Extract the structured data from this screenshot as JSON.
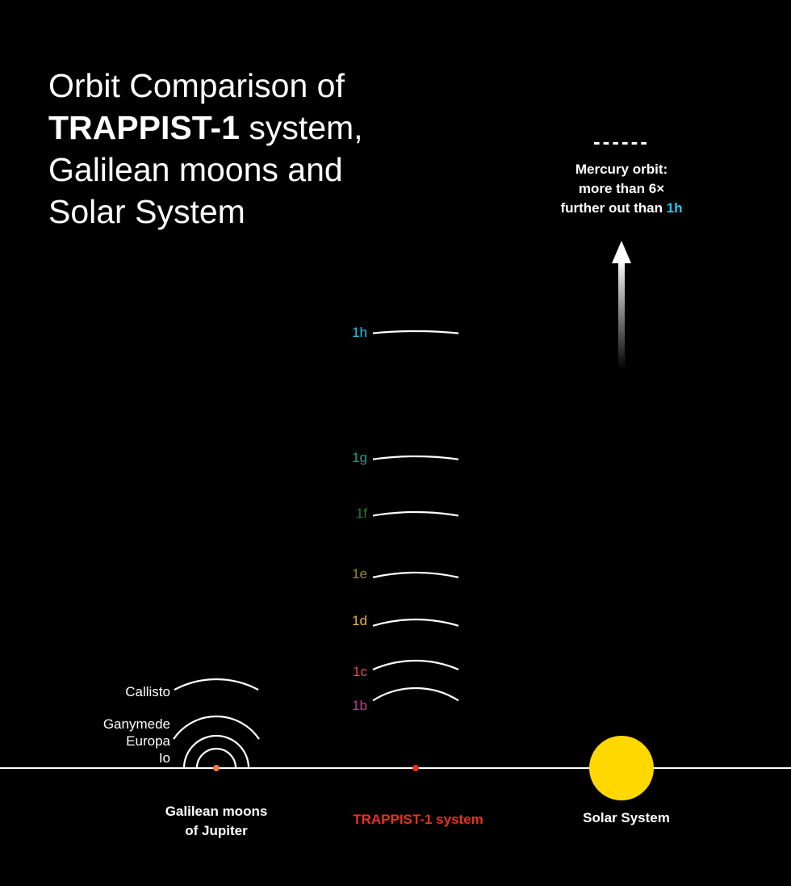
{
  "title": {
    "line1": "Orbit Comparison of",
    "bold": "TRAPPIST-1",
    "line2_rest": " system,",
    "line3": "Galilean moons and",
    "line4": "Solar System"
  },
  "mercury_note": {
    "dashes": "------",
    "line1": "Mercury orbit:",
    "line2": "more than 6×",
    "line3": "further out than ",
    "highlight": "1h",
    "highlight_color": "#1ec8f0"
  },
  "trappist_planets": [
    {
      "label": "1h",
      "color": "#1ec8f0"
    },
    {
      "label": "1g",
      "color": "#17a08a"
    },
    {
      "label": "1f",
      "color": "#1b7a3c"
    },
    {
      "label": "1e",
      "color": "#9c8a2c"
    },
    {
      "label": "1d",
      "color": "#e8b046"
    },
    {
      "label": "1c",
      "color": "#ea4560"
    },
    {
      "label": "1b",
      "color": "#c23c8c"
    }
  ],
  "galilean_moons": [
    "Callisto",
    "Ganymede",
    "Europa",
    "Io"
  ],
  "captions": {
    "galilean_1": "Galilean moons",
    "galilean_2": "of Jupiter",
    "trappist": "TRAPPIST-1 system",
    "solar": "Solar System"
  },
  "colors": {
    "trappist_star": "#e8321e",
    "jupiter": "#f07a40",
    "sun": "#ffd800",
    "trappist_caption": "#e8321e"
  }
}
